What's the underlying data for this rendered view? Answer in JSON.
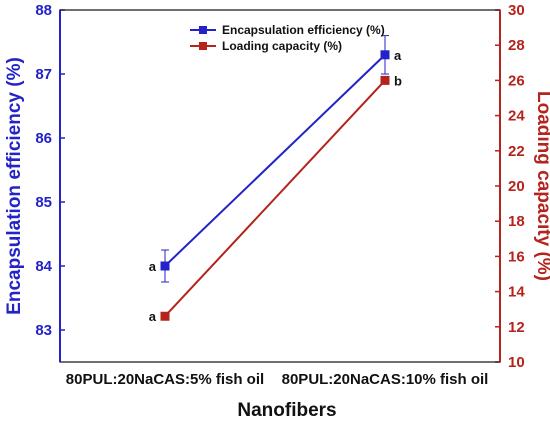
{
  "chart_data": {
    "type": "line",
    "categories": [
      "80PUL:20NaCAS:5% fish oil",
      "80PUL:20NaCAS:10% fish oil"
    ],
    "xlabel": "Nanofibers",
    "ylabel_left": "Encapsulation efficiency (%)",
    "ylabel_right": "Loading capacity (%)",
    "ylim_left": [
      82.5,
      88
    ],
    "ylim_right": [
      10,
      30
    ],
    "yticks_left": [
      83,
      84,
      85,
      86,
      87,
      88
    ],
    "yticks_right": [
      10,
      12,
      14,
      16,
      18,
      20,
      22,
      24,
      26,
      28,
      30
    ],
    "legend_position": "top-center",
    "series": [
      {
        "name": "Encapsulation efficiency (%)",
        "axis": "left",
        "color": "#2323c8",
        "values": [
          84.0,
          87.3
        ],
        "errors": [
          0.25,
          0.3
        ],
        "labels": [
          "a",
          "a"
        ]
      },
      {
        "name": "Loading capacity (%)",
        "axis": "right",
        "color": "#b4231c",
        "values": [
          12.6,
          26.0
        ],
        "errors": [
          0.2,
          0.2
        ],
        "labels": [
          "a",
          "b"
        ]
      }
    ]
  }
}
